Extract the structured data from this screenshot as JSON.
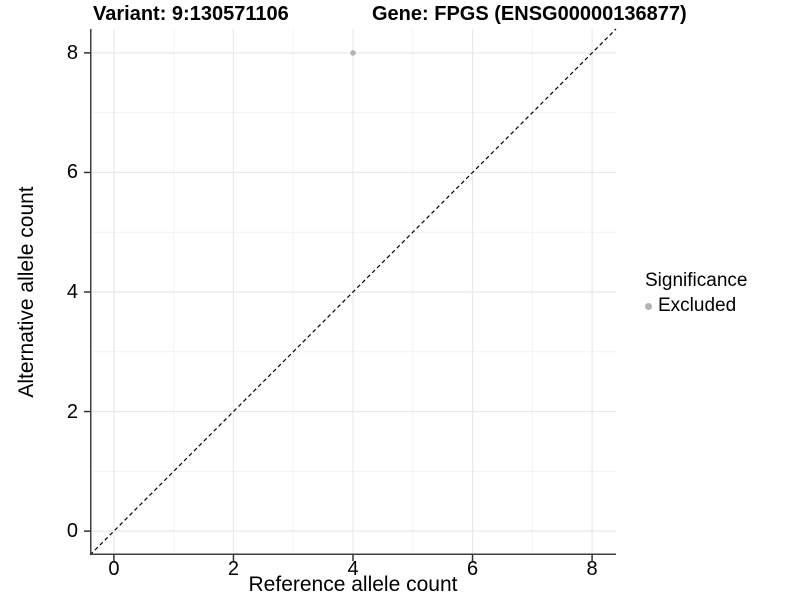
{
  "titles": {
    "variant": "Variant: 9:130571106",
    "gene": "Gene: FPGS (ENSG00000136877)"
  },
  "axes": {
    "x": {
      "label": "Reference allele count",
      "ticks": [
        "0",
        "2",
        "4",
        "6",
        "8"
      ]
    },
    "y": {
      "label": "Alternative allele count",
      "ticks": [
        "0",
        "2",
        "4",
        "6",
        "8"
      ]
    }
  },
  "legend": {
    "title": "Significance",
    "items": [
      {
        "label": "Excluded",
        "color": "#b3b3b3",
        "marker": "circle"
      }
    ]
  },
  "colors": {
    "background": "#ffffff",
    "grid_major": "#e8e8e8",
    "grid_minor": "#f3f3f3",
    "axis_line": "#3f3f3f",
    "tick_mark": "#333333",
    "text": "#000000",
    "reference_line": "#000000"
  },
  "chart_data": {
    "type": "scatter",
    "title": "Variant: 9:130571106 | Gene: FPGS (ENSG00000136877)",
    "xlabel": "Reference allele count",
    "ylabel": "Alternative allele count",
    "xlim": [
      -0.4,
      8.4
    ],
    "ylim": [
      -0.4,
      8.4
    ],
    "x_breaks": [
      0,
      2,
      4,
      6,
      8
    ],
    "y_breaks": [
      0,
      2,
      4,
      6,
      8
    ],
    "x_minor_breaks": [
      1,
      3,
      5,
      7
    ],
    "y_minor_breaks": [
      1,
      3,
      5,
      7
    ],
    "grid": true,
    "legend_position": "right",
    "series": [
      {
        "name": "Excluded",
        "color": "#b3b3b3",
        "marker": "circle",
        "points": [
          {
            "x": 4,
            "y": 8
          }
        ]
      }
    ],
    "reference_line": {
      "type": "identity y=x",
      "style": "dashed",
      "color": "#000000",
      "from": [
        -0.4,
        -0.4
      ],
      "to": [
        8.4,
        8.4
      ]
    }
  }
}
